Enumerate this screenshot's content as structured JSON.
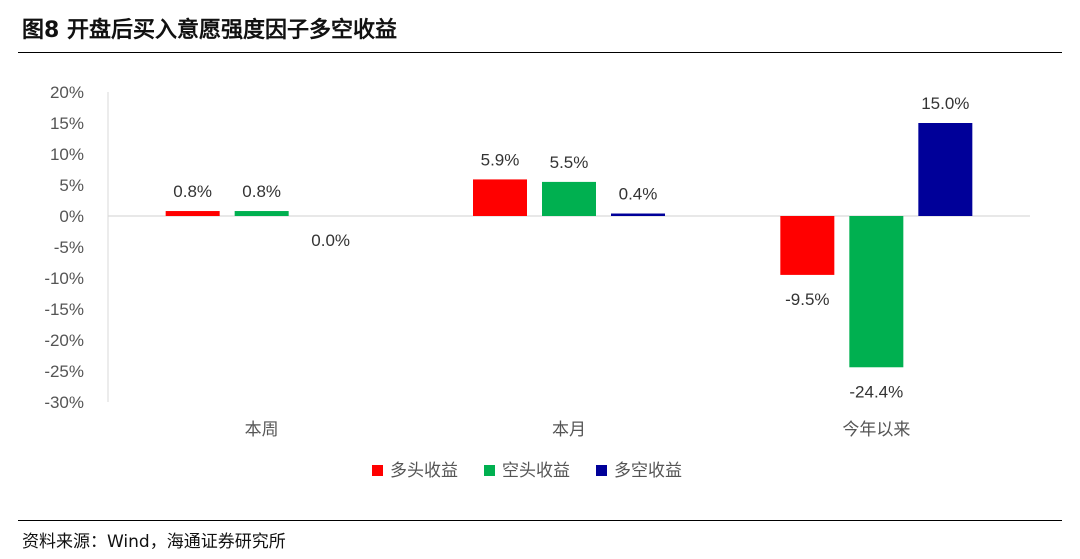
{
  "header": {
    "title": "图8   开盘后买入意愿强度因子多空收益"
  },
  "footer": {
    "source": "资料来源：Wind，海通证券研究所"
  },
  "colors": {
    "long": "#ff0000",
    "short": "#00b050",
    "long_short": "#000099",
    "axis": "#d9d9d9",
    "text": "#555555"
  },
  "chart_data": {
    "type": "bar",
    "title": "开盘后买入意愿强度因子多空收益",
    "categories": [
      "本周",
      "本月",
      "今年以来"
    ],
    "series": [
      {
        "name": "多头收益",
        "color": "#ff0000",
        "values": [
          0.8,
          5.9,
          -9.5
        ]
      },
      {
        "name": "空头收益",
        "color": "#00b050",
        "values": [
          0.8,
          5.5,
          -24.4
        ]
      },
      {
        "name": "多空收益",
        "color": "#000099",
        "values": [
          0.0,
          0.4,
          15.0
        ]
      }
    ],
    "data_labels": [
      [
        "0.8%",
        "5.9%",
        "-9.5%"
      ],
      [
        "0.8%",
        "5.5%",
        "-24.4%"
      ],
      [
        "0.0%",
        "0.4%",
        "15.0%"
      ]
    ],
    "y_ticks": [
      "20%",
      "15%",
      "10%",
      "5%",
      "0%",
      "-5%",
      "-10%",
      "-15%",
      "-20%",
      "-25%",
      "-30%"
    ],
    "ylim": [
      -30,
      20
    ],
    "unit": "%",
    "legend_position": "bottom",
    "grid": false
  }
}
